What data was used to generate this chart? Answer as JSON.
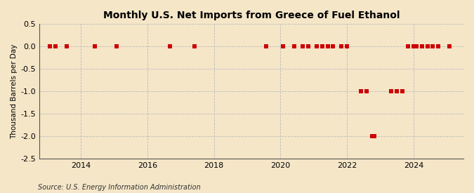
{
  "title": "Monthly U.S. Net Imports from Greece of Fuel Ethanol",
  "ylabel": "Thousand Barrels per Day",
  "source": "Source: U.S. Energy Information Administration",
  "background_color": "#f5e6c8",
  "plot_background_color": "#f5e6c8",
  "marker_color": "#cc0000",
  "marker": "s",
  "marker_size": 4,
  "xlim_start": 2012.75,
  "xlim_end": 2025.5,
  "ylim": [
    -2.5,
    0.5
  ],
  "yticks": [
    0.5,
    0.0,
    -0.5,
    -1.0,
    -1.5,
    -2.0,
    -2.5
  ],
  "xticks": [
    2014,
    2016,
    2018,
    2020,
    2022,
    2024
  ],
  "grid_color": "#bbbbbb",
  "spine_color": "#555555",
  "data_points": [
    [
      2013.08,
      0.0
    ],
    [
      2013.25,
      0.0
    ],
    [
      2013.58,
      0.0
    ],
    [
      2014.42,
      0.0
    ],
    [
      2015.08,
      0.0
    ],
    [
      2016.67,
      0.0
    ],
    [
      2017.42,
      0.0
    ],
    [
      2019.58,
      0.0
    ],
    [
      2020.08,
      0.0
    ],
    [
      2020.42,
      0.0
    ],
    [
      2020.67,
      0.0
    ],
    [
      2020.83,
      0.0
    ],
    [
      2021.08,
      0.0
    ],
    [
      2021.25,
      0.0
    ],
    [
      2021.42,
      0.0
    ],
    [
      2021.58,
      0.0
    ],
    [
      2021.83,
      0.0
    ],
    [
      2022.0,
      0.0
    ],
    [
      2022.42,
      -1.0
    ],
    [
      2022.58,
      -1.0
    ],
    [
      2022.75,
      -2.0
    ],
    [
      2022.83,
      -2.0
    ],
    [
      2023.33,
      -1.0
    ],
    [
      2023.5,
      -1.0
    ],
    [
      2023.67,
      -1.0
    ],
    [
      2023.83,
      0.0
    ],
    [
      2024.0,
      0.0
    ],
    [
      2024.08,
      0.0
    ],
    [
      2024.25,
      0.0
    ],
    [
      2024.42,
      0.0
    ],
    [
      2024.58,
      0.0
    ],
    [
      2024.75,
      0.0
    ],
    [
      2025.08,
      0.0
    ]
  ]
}
